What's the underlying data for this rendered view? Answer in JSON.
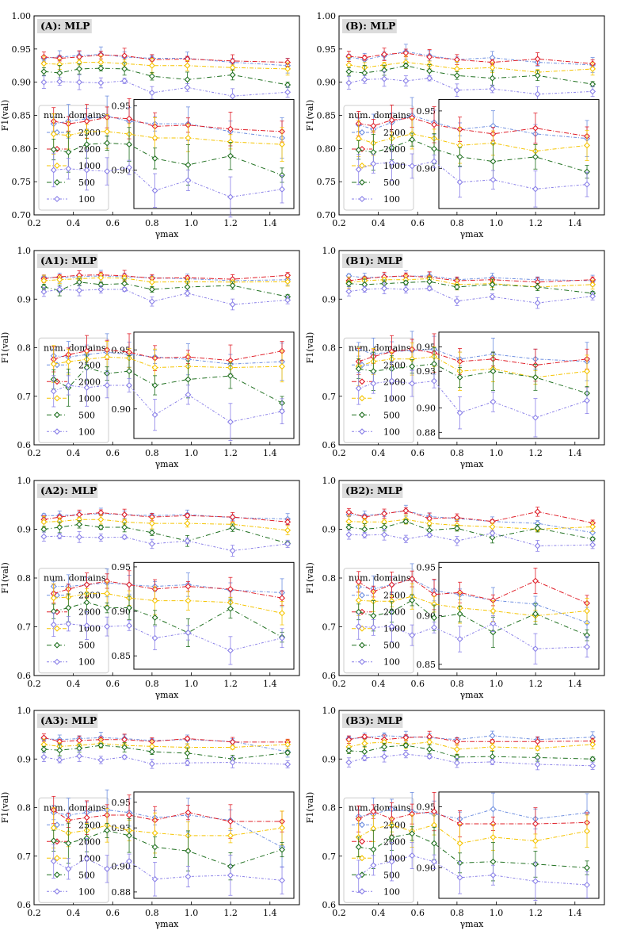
{
  "legend": {
    "title": "num. domains",
    "entries": [
      "2500",
      "2000",
      "1000",
      "500",
      "100"
    ]
  },
  "series_colors": [
    "#6f8fe0",
    "#e0202a",
    "#f5c400",
    "#207020",
    "#8a80e8"
  ],
  "chart_data": [
    {
      "type": "line",
      "title": "(A): MLP",
      "xlabel": "γmax",
      "ylabel": "F1(val)",
      "xlim": [
        0.2,
        1.55
      ],
      "ylim": [
        0.7,
        1.0
      ],
      "yticks": [
        "0.70",
        "0.75",
        "0.80",
        "0.85",
        "0.90",
        "0.95",
        "1.00"
      ],
      "xticks": [
        "0.2",
        "0.4",
        "0.6",
        "0.8",
        "1.0",
        "1.2",
        "1.4"
      ],
      "inset_ylim": [
        0.87,
        0.955
      ],
      "inset_yticks": [
        "0.90",
        "0.95"
      ],
      "x": [
        0.25,
        0.33,
        0.43,
        0.54,
        0.66,
        0.8,
        0.98,
        1.21,
        1.49
      ],
      "series": [
        {
          "name": "2500",
          "values": [
            0.936,
            0.938,
            0.94,
            0.942,
            0.938,
            0.936,
            0.936,
            0.93,
            0.925
          ]
        },
        {
          "name": "2000",
          "values": [
            0.938,
            0.936,
            0.938,
            0.941,
            0.94,
            0.934,
            0.935,
            0.932,
            0.93
          ]
        },
        {
          "name": "1000",
          "values": [
            0.928,
            0.927,
            0.93,
            0.93,
            0.928,
            0.925,
            0.925,
            0.922,
            0.92
          ]
        },
        {
          "name": "500",
          "values": [
            0.916,
            0.914,
            0.92,
            0.921,
            0.92,
            0.909,
            0.904,
            0.911,
            0.896
          ]
        },
        {
          "name": "100",
          "values": [
            0.9,
            0.901,
            0.9,
            0.899,
            0.902,
            0.884,
            0.892,
            0.879,
            0.885
          ]
        }
      ]
    },
    {
      "type": "line",
      "title": "(B): MLP",
      "xlabel": "γmax",
      "ylabel": "F1(val)",
      "xlim": [
        0.2,
        1.55
      ],
      "ylim": [
        0.7,
        1.0
      ],
      "yticks": [
        "0.70",
        "0.75",
        "0.80",
        "0.85",
        "0.90",
        "0.95",
        "1.00"
      ],
      "xticks": [
        "0.2",
        "0.4",
        "0.6",
        "0.8",
        "1.0",
        "1.2",
        "1.4"
      ],
      "inset_ylim": [
        0.865,
        0.96
      ],
      "inset_yticks": [
        "0.90",
        "0.95"
      ],
      "x": [
        0.25,
        0.33,
        0.43,
        0.54,
        0.66,
        0.8,
        0.98,
        1.21,
        1.49
      ],
      "series": [
        {
          "name": "2500",
          "values": [
            0.938,
            0.934,
            0.94,
            0.946,
            0.94,
            0.934,
            0.937,
            0.93,
            0.926
          ]
        },
        {
          "name": "2000",
          "values": [
            0.939,
            0.937,
            0.942,
            0.944,
            0.938,
            0.934,
            0.93,
            0.935,
            0.928
          ]
        },
        {
          "name": "1000",
          "values": [
            0.926,
            0.922,
            0.926,
            0.93,
            0.926,
            0.92,
            0.922,
            0.915,
            0.92
          ]
        },
        {
          "name": "500",
          "values": [
            0.916,
            0.914,
            0.918,
            0.925,
            0.917,
            0.91,
            0.906,
            0.91,
            0.897
          ]
        },
        {
          "name": "100",
          "values": [
            0.899,
            0.904,
            0.905,
            0.902,
            0.906,
            0.888,
            0.89,
            0.882,
            0.886
          ]
        }
      ]
    },
    {
      "type": "line",
      "title": "(A1): MLP",
      "xlabel": "γmax",
      "ylabel": "F1(val)",
      "xlim": [
        0.2,
        1.55
      ],
      "ylim": [
        0.6,
        1.0
      ],
      "yticks": [
        "0.6",
        "0.7",
        "0.8",
        "0.9",
        "1.0"
      ],
      "xticks": [
        "0.2",
        "0.4",
        "0.6",
        "0.8",
        "1.0",
        "1.2",
        "1.4"
      ],
      "inset_ylim": [
        0.875,
        0.965
      ],
      "inset_yticks": [
        "0.90",
        "0.95"
      ],
      "x": [
        0.25,
        0.33,
        0.43,
        0.54,
        0.66,
        0.8,
        0.98,
        1.21,
        1.49
      ],
      "series": [
        {
          "name": "2500",
          "values": [
            0.945,
            0.944,
            0.946,
            0.948,
            0.946,
            0.944,
            0.942,
            0.938,
            0.94
          ]
        },
        {
          "name": "2000",
          "values": [
            0.942,
            0.946,
            0.949,
            0.95,
            0.948,
            0.943,
            0.944,
            0.941,
            0.949
          ]
        },
        {
          "name": "1000",
          "values": [
            0.938,
            0.94,
            0.942,
            0.944,
            0.943,
            0.935,
            0.936,
            0.935,
            0.936
          ]
        },
        {
          "name": "500",
          "values": [
            0.925,
            0.918,
            0.935,
            0.93,
            0.932,
            0.92,
            0.925,
            0.928,
            0.905
          ]
        },
        {
          "name": "100",
          "values": [
            0.915,
            0.92,
            0.918,
            0.92,
            0.92,
            0.895,
            0.912,
            0.889,
            0.898
          ]
        }
      ]
    },
    {
      "type": "line",
      "title": "(B1): MLP",
      "xlabel": "γmax",
      "ylabel": "F1(val)",
      "xlim": [
        0.2,
        1.55
      ],
      "ylim": [
        0.6,
        1.0
      ],
      "yticks": [
        "0.6",
        "0.7",
        "0.8",
        "0.9",
        "1.0"
      ],
      "xticks": [
        "0.2",
        "0.4",
        "0.6",
        "0.8",
        "1.0",
        "1.2",
        "1.4"
      ],
      "inset_ylim": [
        0.875,
        0.962
      ],
      "inset_yticks": [
        "0.88",
        "0.90",
        "0.93",
        "0.95"
      ],
      "x": [
        0.25,
        0.33,
        0.43,
        0.54,
        0.66,
        0.8,
        0.98,
        1.21,
        1.49
      ],
      "series": [
        {
          "name": "2500",
          "values": [
            0.948,
            0.944,
            0.946,
            0.947,
            0.948,
            0.94,
            0.944,
            0.94,
            0.938
          ]
        },
        {
          "name": "2000",
          "values": [
            0.938,
            0.942,
            0.946,
            0.948,
            0.945,
            0.938,
            0.94,
            0.935,
            0.94
          ]
        },
        {
          "name": "1000",
          "values": [
            0.934,
            0.938,
            0.94,
            0.94,
            0.942,
            0.93,
            0.932,
            0.925,
            0.93
          ]
        },
        {
          "name": "500",
          "values": [
            0.932,
            0.93,
            0.932,
            0.934,
            0.936,
            0.925,
            0.93,
            0.925,
            0.912
          ]
        },
        {
          "name": "100",
          "values": [
            0.916,
            0.92,
            0.922,
            0.92,
            0.922,
            0.896,
            0.905,
            0.892,
            0.906
          ]
        }
      ]
    },
    {
      "type": "line",
      "title": "(A2): MLP",
      "xlabel": "γmax",
      "ylabel": "F1(val)",
      "xlim": [
        0.2,
        1.55
      ],
      "ylim": [
        0.6,
        1.0
      ],
      "yticks": [
        "0.6",
        "0.7",
        "0.8",
        "0.9",
        "1.0"
      ],
      "xticks": [
        "0.2",
        "0.4",
        "0.6",
        "0.8",
        "1.0",
        "1.2",
        "1.4"
      ],
      "inset_ylim": [
        0.835,
        0.955
      ],
      "inset_yticks": [
        "0.85",
        "0.90",
        "0.95"
      ],
      "x": [
        0.25,
        0.33,
        0.43,
        0.54,
        0.66,
        0.8,
        0.98,
        1.21,
        1.49
      ],
      "series": [
        {
          "name": "2500",
          "values": [
            0.928,
            0.928,
            0.93,
            0.932,
            0.93,
            0.928,
            0.93,
            0.924,
            0.921
          ]
        },
        {
          "name": "2000",
          "values": [
            0.92,
            0.925,
            0.93,
            0.934,
            0.93,
            0.925,
            0.928,
            0.925,
            0.915
          ]
        },
        {
          "name": "1000",
          "values": [
            0.915,
            0.916,
            0.92,
            0.92,
            0.915,
            0.912,
            0.912,
            0.91,
            0.898
          ]
        },
        {
          "name": "500",
          "values": [
            0.9,
            0.904,
            0.91,
            0.904,
            0.904,
            0.893,
            0.876,
            0.903,
            0.871
          ]
        },
        {
          "name": "100",
          "values": [
            0.885,
            0.886,
            0.884,
            0.883,
            0.884,
            0.87,
            0.876,
            0.856,
            0.87
          ]
        }
      ]
    },
    {
      "type": "line",
      "title": "(B2): MLP",
      "xlabel": "γmax",
      "ylabel": "F1(val)",
      "xlim": [
        0.2,
        1.55
      ],
      "ylim": [
        0.6,
        1.0
      ],
      "yticks": [
        "0.6",
        "0.7",
        "0.8",
        "0.9",
        "1.0"
      ],
      "xticks": [
        "0.2",
        "0.4",
        "0.6",
        "0.8",
        "1.0",
        "1.2",
        "1.4"
      ],
      "inset_ylim": [
        0.845,
        0.955
      ],
      "inset_yticks": [
        "0.85",
        "0.90",
        "0.95"
      ],
      "x": [
        0.25,
        0.33,
        0.43,
        0.54,
        0.66,
        0.8,
        0.98,
        1.21,
        1.49
      ],
      "series": [
        {
          "name": "2500",
          "values": [
            0.93,
            0.928,
            0.932,
            0.938,
            0.926,
            0.922,
            0.916,
            0.912,
            0.893
          ]
        },
        {
          "name": "2000",
          "values": [
            0.935,
            0.925,
            0.932,
            0.938,
            0.922,
            0.924,
            0.916,
            0.936,
            0.913
          ]
        },
        {
          "name": "1000",
          "values": [
            0.916,
            0.915,
            0.915,
            0.92,
            0.912,
            0.908,
            0.905,
            0.9,
            0.905
          ]
        },
        {
          "name": "500",
          "values": [
            0.904,
            0.9,
            0.904,
            0.916,
            0.898,
            0.902,
            0.883,
            0.902,
            0.88
          ]
        },
        {
          "name": "100",
          "values": [
            0.889,
            0.888,
            0.889,
            0.88,
            0.888,
            0.876,
            0.892,
            0.866,
            0.868
          ]
        }
      ]
    },
    {
      "type": "line",
      "title": "(A3): MLP",
      "xlabel": "γmax",
      "ylabel": "F1(val)",
      "xlim": [
        0.2,
        1.55
      ],
      "ylim": [
        0.6,
        1.0
      ],
      "yticks": [
        "0.6",
        "0.7",
        "0.8",
        "0.9",
        "1.0"
      ],
      "xticks": [
        "0.2",
        "0.4",
        "0.6",
        "0.8",
        "1.0",
        "1.2",
        "1.4"
      ],
      "inset_ylim": [
        0.875,
        0.958
      ],
      "inset_yticks": [
        "0.88",
        "0.90",
        "0.93",
        "0.95"
      ],
      "x": [
        0.25,
        0.33,
        0.43,
        0.54,
        0.66,
        0.8,
        0.98,
        1.21,
        1.49
      ],
      "series": [
        {
          "name": "2500",
          "values": [
            0.942,
            0.94,
            0.942,
            0.944,
            0.942,
            0.938,
            0.94,
            0.936,
            0.915
          ]
        },
        {
          "name": "2000",
          "values": [
            0.944,
            0.936,
            0.938,
            0.94,
            0.94,
            0.936,
            0.942,
            0.935,
            0.935
          ]
        },
        {
          "name": "1000",
          "values": [
            0.93,
            0.926,
            0.928,
            0.932,
            0.928,
            0.926,
            0.924,
            0.924,
            0.93
          ]
        },
        {
          "name": "500",
          "values": [
            0.92,
            0.918,
            0.922,
            0.928,
            0.924,
            0.915,
            0.912,
            0.9,
            0.913
          ]
        },
        {
          "name": "100",
          "values": [
            0.904,
            0.898,
            0.906,
            0.898,
            0.904,
            0.89,
            0.892,
            0.893,
            0.889
          ]
        }
      ]
    },
    {
      "type": "line",
      "title": "(B3): MLP",
      "xlabel": "γmax",
      "ylabel": "F1(val)",
      "xlim": [
        0.2,
        1.55
      ],
      "ylim": [
        0.6,
        1.0
      ],
      "yticks": [
        "0.6",
        "0.7",
        "0.8",
        "0.9",
        "1.0"
      ],
      "xticks": [
        "0.2",
        "0.4",
        "0.6",
        "0.8",
        "1.0",
        "1.2",
        "1.4"
      ],
      "inset_ylim": [
        0.875,
        0.962
      ],
      "inset_yticks": [
        "0.90",
        "0.95"
      ],
      "x": [
        0.25,
        0.33,
        0.43,
        0.54,
        0.66,
        0.8,
        0.98,
        1.21,
        1.49
      ],
      "series": [
        {
          "name": "2500",
          "values": [
            0.942,
            0.944,
            0.948,
            0.946,
            0.944,
            0.94,
            0.948,
            0.94,
            0.945
          ]
        },
        {
          "name": "2000",
          "values": [
            0.94,
            0.946,
            0.94,
            0.944,
            0.946,
            0.936,
            0.936,
            0.936,
            0.937
          ]
        },
        {
          "name": "1000",
          "values": [
            0.925,
            0.932,
            0.935,
            0.93,
            0.935,
            0.92,
            0.925,
            0.922,
            0.93
          ]
        },
        {
          "name": "500",
          "values": [
            0.917,
            0.915,
            0.925,
            0.928,
            0.92,
            0.904,
            0.905,
            0.903,
            0.9
          ]
        },
        {
          "name": "100",
          "values": [
            0.893,
            0.902,
            0.905,
            0.91,
            0.905,
            0.892,
            0.894,
            0.889,
            0.886
          ]
        }
      ]
    }
  ]
}
